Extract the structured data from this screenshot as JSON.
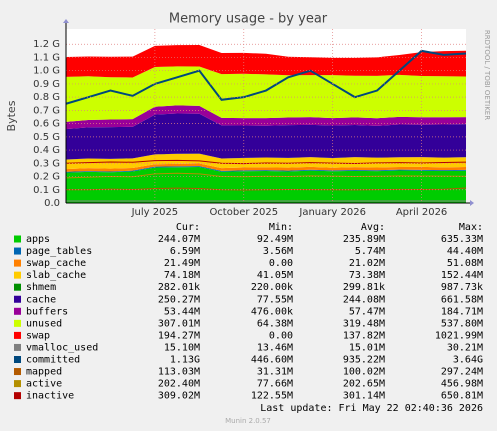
{
  "chart_data": {
    "type": "area",
    "title": "Memory usage - by year",
    "y_label": "Bytes",
    "side_text": "RRDTOOL / TOBI OETIKER",
    "categories": [
      null,
      null,
      null,
      null,
      "July 2025",
      null,
      null,
      null,
      "October 2025",
      null,
      null,
      null,
      "January 2026",
      null,
      null,
      null,
      "April 2026",
      null,
      null
    ],
    "ylim": [
      0,
      1300000000.0
    ],
    "yticks": [
      {
        "value": 0,
        "label": "0.0"
      },
      {
        "value": 100000000.0,
        "label": "0.1 G"
      },
      {
        "value": 200000000.0,
        "label": "0.2 G"
      },
      {
        "value": 300000000.0,
        "label": "0.3 G"
      },
      {
        "value": 400000000.0,
        "label": "0.4 G"
      },
      {
        "value": 500000000.0,
        "label": "0.5 G"
      },
      {
        "value": 600000000.0,
        "label": "0.6 G"
      },
      {
        "value": 700000000.0,
        "label": "0.7 G"
      },
      {
        "value": 800000000.0,
        "label": "0.8 G"
      },
      {
        "value": 900000000.0,
        "label": "0.9 G"
      },
      {
        "value": 1000000000.0,
        "label": "1.0 G"
      },
      {
        "value": 1100000000.0,
        "label": "1.1 G"
      },
      {
        "value": 1200000000.0,
        "label": "1.2 G"
      }
    ],
    "grid": true,
    "stat_columns": [
      "Cur:",
      "Min:",
      "Avg:",
      "Max:"
    ],
    "series": [
      {
        "name": "apps",
        "color": "#00CC00",
        "draw": "area",
        "stats": [
          "244.07M",
          "92.49M",
          "235.89M",
          "635.33M"
        ],
        "values": [
          230000000.0,
          235000000.0,
          232000000.0,
          238000000.0,
          268000000.0,
          270000000.0,
          272000000.0,
          236000000.0,
          240000000.0,
          242000000.0,
          238000000.0,
          245000000.0,
          240000000.0,
          243000000.0,
          241000000.0,
          246000000.0,
          244000000.0,
          242000000.0,
          244000000.0
        ]
      },
      {
        "name": "page_tables",
        "color": "#0066B3",
        "draw": "area",
        "stats": [
          "6.59M",
          "3.56M",
          "5.74M",
          "44.40M"
        ],
        "values": [
          6200000.0,
          6300000.0,
          6400000.0,
          6400000.0,
          6500000.0,
          6600000.0,
          6600000.0,
          6500000.0,
          6500000.0,
          6600000.0,
          6500000.0,
          6600000.0,
          6500000.0,
          6600000.0,
          6600000.0,
          6500000.0,
          6600000.0,
          6600000.0,
          6600000.0
        ]
      },
      {
        "name": "swap_cache",
        "color": "#FF8000",
        "draw": "area",
        "stats": [
          "21.49M",
          "0.00",
          "21.02M",
          "51.08M"
        ],
        "values": [
          20000000.0,
          22000000.0,
          21000000.0,
          20000000.0,
          18000000.0,
          19000000.0,
          20000000.0,
          21000000.0,
          22000000.0,
          21000000.0,
          23000000.0,
          21000000.0,
          20000000.0,
          22000000.0,
          21000000.0,
          20000000.0,
          22000000.0,
          21000000.0,
          21500000.0
        ]
      },
      {
        "name": "slab_cache",
        "color": "#FFCC00",
        "draw": "area",
        "stats": [
          "74.18M",
          "41.05M",
          "73.38M",
          "152.44M"
        ],
        "values": [
          72000000.0,
          73000000.0,
          74000000.0,
          73000000.0,
          75000000.0,
          76000000.0,
          74000000.0,
          73000000.0,
          72000000.0,
          74000000.0,
          73000000.0,
          74000000.0,
          73000000.0,
          75000000.0,
          74000000.0,
          73000000.0,
          74000000.0,
          73000000.0,
          74000000.0
        ]
      },
      {
        "name": "shmem",
        "color": "#008F00",
        "draw": "area",
        "stats": [
          "282.01k",
          "220.00k",
          "299.81k",
          "987.73k"
        ],
        "values": [
          282000.0,
          282000.0,
          282000.0,
          282000.0,
          282000.0,
          282000.0,
          282000.0,
          282000.0,
          282000.0,
          282000.0,
          282000.0,
          282000.0,
          282000.0,
          282000.0,
          282000.0,
          282000.0,
          282000.0,
          282000.0,
          282000.0
        ]
      },
      {
        "name": "cache",
        "color": "#330099",
        "draw": "area",
        "stats": [
          "250.27M",
          "77.55M",
          "244.08M",
          "661.58M"
        ],
        "values": [
          230000000.0,
          235000000.0,
          240000000.0,
          238000000.0,
          300000000.0,
          305000000.0,
          302000000.0,
          250000000.0,
          245000000.0,
          240000000.0,
          248000000.0,
          244000000.0,
          246000000.0,
          243000000.0,
          240000000.0,
          248000000.0,
          245000000.0,
          250000000.0,
          250000000.0
        ]
      },
      {
        "name": "buffers",
        "color": "#990099",
        "draw": "area",
        "stats": [
          "53.44M",
          "476.00k",
          "57.47M",
          "184.71M"
        ],
        "values": [
          55000000.0,
          56000000.0,
          57000000.0,
          58000000.0,
          60000000.0,
          61000000.0,
          59000000.0,
          57000000.0,
          56000000.0,
          58000000.0,
          57000000.0,
          58000000.0,
          56000000.0,
          57000000.0,
          58000000.0,
          57000000.0,
          56000000.0,
          55000000.0,
          53000000.0
        ]
      },
      {
        "name": "unused",
        "color": "#CCFF00",
        "draw": "area",
        "stats": [
          "307.01M",
          "64.38M",
          "319.48M",
          "537.80M"
        ],
        "values": [
          340000000.0,
          330000000.0,
          320000000.0,
          315000000.0,
          300000000.0,
          295000000.0,
          298000000.0,
          330000000.0,
          335000000.0,
          330000000.0,
          320000000.0,
          318000000.0,
          325000000.0,
          315000000.0,
          320000000.0,
          318000000.0,
          312000000.0,
          310000000.0,
          307000000.0
        ]
      },
      {
        "name": "swap",
        "color": "#FF0000",
        "draw": "area",
        "stats": [
          "194.27M",
          "0.00",
          "137.82M",
          "1021.99M"
        ],
        "values": [
          150000000.0,
          150000000.0,
          155000000.0,
          158000000.0,
          160000000.0,
          160000000.0,
          162000000.0,
          160000000.0,
          158000000.0,
          156000000.0,
          140000000.0,
          135000000.0,
          130000000.0,
          135000000.0,
          140000000.0,
          150000000.0,
          180000000.0,
          190000000.0,
          194000000.0
        ]
      },
      {
        "name": "vmalloc_used",
        "color": "#808080",
        "draw": "line",
        "stats": [
          "15.10M",
          "13.46M",
          "15.01M",
          "30.21M"
        ],
        "values": [
          15000000.0,
          15000000.0,
          15000000.0,
          15000000.0,
          15000000.0,
          15000000.0,
          15000000.0,
          15000000.0,
          15000000.0,
          15000000.0,
          15000000.0,
          15000000.0,
          15000000.0,
          15000000.0,
          15000000.0,
          15000000.0,
          15000000.0,
          15000000.0,
          15000000.0
        ]
      },
      {
        "name": "committed",
        "color": "#00487D",
        "draw": "line",
        "stats": [
          "1.13G",
          "446.60M",
          "935.22M",
          "3.64G"
        ],
        "values": [
          750000000.0,
          800000000.0,
          850000000.0,
          810000000.0,
          900000000.0,
          950000000.0,
          1000000000.0,
          780000000.0,
          800000000.0,
          850000000.0,
          950000000.0,
          1000000000.0,
          900000000.0,
          800000000.0,
          850000000.0,
          1000000000.0,
          1150000000.0,
          1120000000.0,
          1130000000.0
        ]
      },
      {
        "name": "mapped",
        "color": "#B35A00",
        "draw": "line",
        "stats": [
          "113.03M",
          "31.31M",
          "100.02M",
          "297.24M"
        ],
        "values": [
          100000000.0,
          100000000.0,
          105000000.0,
          102000000.0,
          110000000.0,
          112000000.0,
          110000000.0,
          100000000.0,
          98000000.0,
          100000000.0,
          102000000.0,
          101000000.0,
          100000000.0,
          99000000.0,
          101000000.0,
          103000000.0,
          102000000.0,
          104000000.0,
          113000000.0
        ]
      },
      {
        "name": "active",
        "color": "#B38F00",
        "draw": "line",
        "stats": [
          "202.40M",
          "77.66M",
          "202.65M",
          "456.98M"
        ],
        "values": [
          190000000.0,
          195000000.0,
          200000000.0,
          198000000.0,
          220000000.0,
          225000000.0,
          220000000.0,
          200000000.0,
          198000000.0,
          202000000.0,
          200000000.0,
          205000000.0,
          203000000.0,
          200000000.0,
          202000000.0,
          205000000.0,
          204000000.0,
          203000000.0,
          202000000.0
        ]
      },
      {
        "name": "inactive",
        "color": "#B30000",
        "draw": "line",
        "stats": [
          "309.02M",
          "122.55M",
          "301.14M",
          "650.81M"
        ],
        "values": [
          300000000.0,
          305000000.0,
          310000000.0,
          308000000.0,
          320000000.0,
          322000000.0,
          318000000.0,
          300000000.0,
          298000000.0,
          302000000.0,
          300000000.0,
          305000000.0,
          301000000.0,
          299000000.0,
          303000000.0,
          305000000.0,
          302000000.0,
          306000000.0,
          309000000.0
        ]
      }
    ],
    "last_update": "Last update: Fri May 22 02:40:36 2026",
    "footer": "Munin 2.0.57"
  }
}
